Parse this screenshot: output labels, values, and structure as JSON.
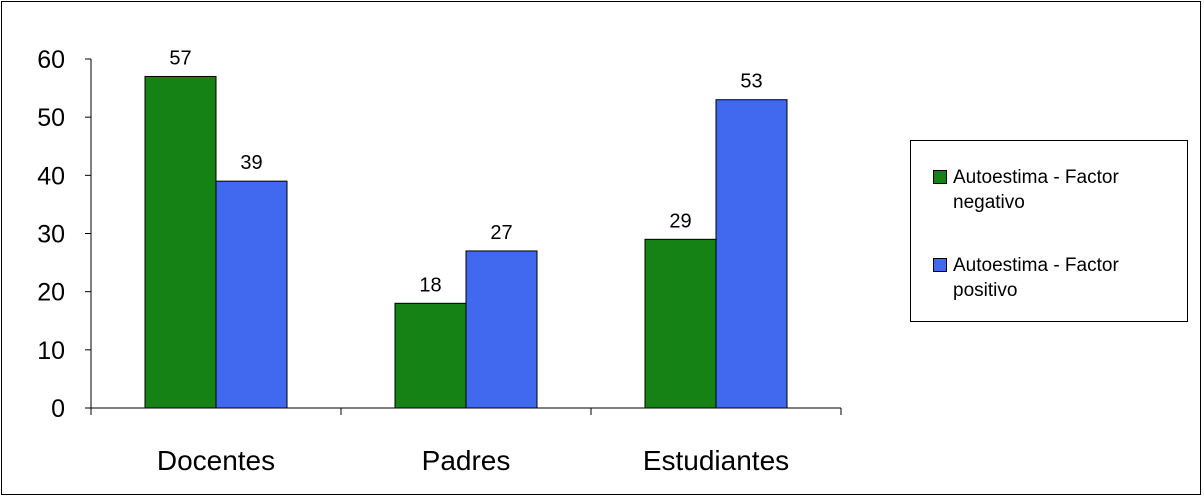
{
  "chart_data": {
    "type": "bar",
    "categories": [
      "Docentes",
      "Padres",
      "Estudiantes"
    ],
    "series": [
      {
        "name": "Autoestima - Factor negativo",
        "values": [
          57,
          18,
          29
        ],
        "color": "#158215"
      },
      {
        "name": "Autoestima - Factor positivo",
        "values": [
          39,
          27,
          53
        ],
        "color": "#4169f0"
      }
    ],
    "y_ticks": [
      "0",
      "10",
      "20",
      "30",
      "40",
      "50",
      "60"
    ],
    "ylim": [
      0,
      60
    ],
    "grid": false,
    "legend": "right"
  }
}
